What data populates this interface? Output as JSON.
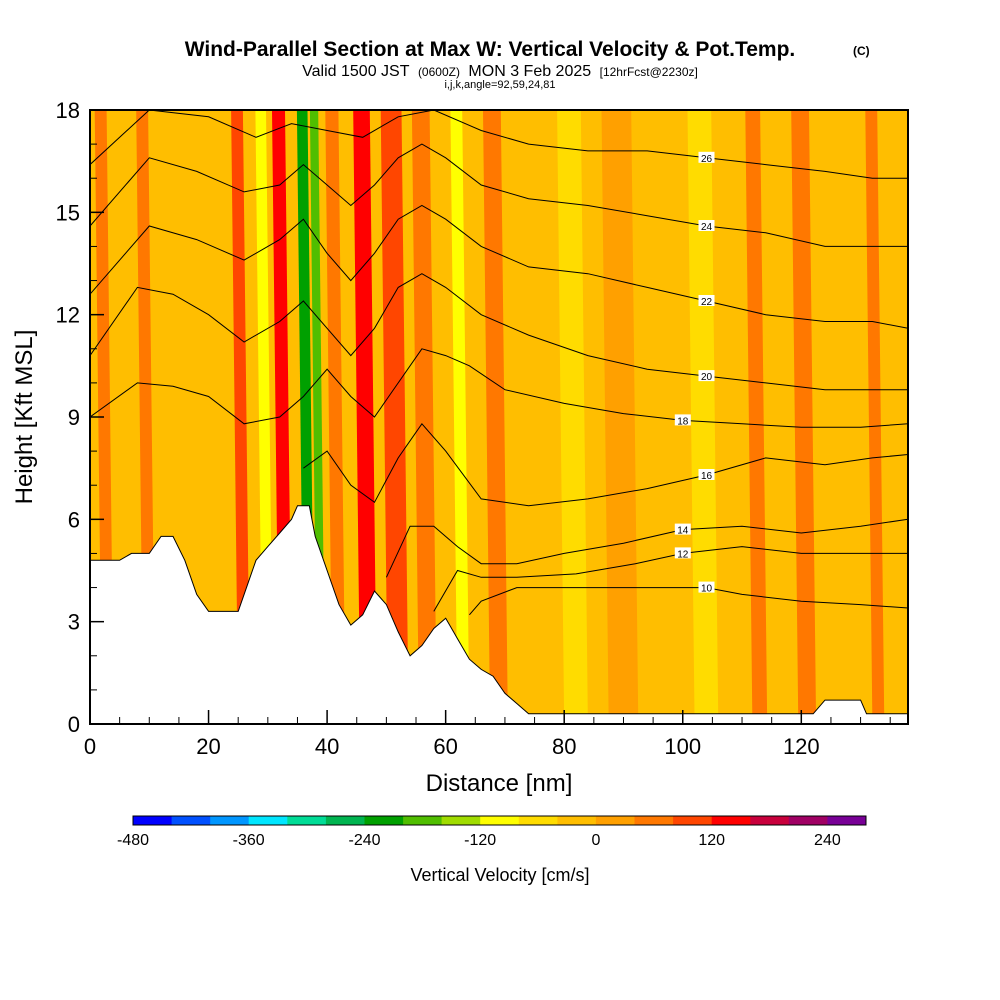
{
  "chart_data": {
    "type": "heatmap",
    "title": "Wind-Parallel Section at Max W: Vertical Velocity & Pot.Temp.",
    "title_mark": "(C)",
    "subtitle_main": "Valid 1500 JST",
    "subtitle_z": "(0600Z)",
    "subtitle_date": "MON 3 Feb 2025",
    "subtitle_fcst": "[12hrFcst@2230z]",
    "subtitle2": "i,j,k,angle=92,59,24,81",
    "xlabel": "Distance [nm]",
    "ylabel": "Height [Kft MSL]",
    "xlim": [
      0,
      138
    ],
    "ylim": [
      0,
      18
    ],
    "x_ticks": [
      0,
      20,
      40,
      60,
      80,
      100,
      120
    ],
    "y_ticks": [
      0,
      3,
      6,
      9,
      12,
      15,
      18
    ],
    "colorbar": {
      "label": "Vertical Velocity [cm/s]",
      "tick_values": [
        -480,
        -360,
        -240,
        -120,
        0,
        120,
        240
      ],
      "min": -480,
      "step": 40,
      "colors": [
        "#0000ff",
        "#0050ff",
        "#0096ff",
        "#00e6ff",
        "#00dc96",
        "#00b450",
        "#00a000",
        "#50be00",
        "#a0dc00",
        "#ffff00",
        "#ffdc00",
        "#ffbe00",
        "#ffa000",
        "#ff7800",
        "#ff4600",
        "#ff0000",
        "#c8003c",
        "#a00064",
        "#780096"
      ]
    },
    "background_color": "#ffbe00",
    "terrain": [
      [
        0,
        4.8
      ],
      [
        5,
        4.8
      ],
      [
        7,
        5.0
      ],
      [
        10,
        5.0
      ],
      [
        12,
        5.5
      ],
      [
        14,
        5.5
      ],
      [
        16,
        4.8
      ],
      [
        18,
        3.8
      ],
      [
        20,
        3.3
      ],
      [
        25,
        3.3
      ],
      [
        26,
        3.8
      ],
      [
        28,
        4.8
      ],
      [
        30,
        5.2
      ],
      [
        32,
        5.6
      ],
      [
        34,
        6.0
      ],
      [
        35,
        6.4
      ],
      [
        37,
        6.4
      ],
      [
        38,
        5.5
      ],
      [
        40,
        4.5
      ],
      [
        42,
        3.5
      ],
      [
        44,
        2.9
      ],
      [
        46,
        3.2
      ],
      [
        48,
        3.9
      ],
      [
        50,
        3.5
      ],
      [
        52,
        2.7
      ],
      [
        54,
        2.0
      ],
      [
        56,
        2.3
      ],
      [
        58,
        2.8
      ],
      [
        60,
        3.1
      ],
      [
        62,
        2.5
      ],
      [
        64,
        1.9
      ],
      [
        66,
        1.6
      ],
      [
        68,
        1.4
      ],
      [
        70,
        0.9
      ],
      [
        72,
        0.6
      ],
      [
        74,
        0.3
      ],
      [
        122,
        0.3
      ],
      [
        124,
        0.7
      ],
      [
        130,
        0.7
      ],
      [
        131,
        0.3
      ],
      [
        138,
        0.3
      ]
    ],
    "w_bands": [
      {
        "x": 3,
        "w": 2.0,
        "value": 60
      },
      {
        "x": 10,
        "w": 2.0,
        "value": 70
      },
      {
        "x": 19,
        "w": 2.5,
        "value": -30
      },
      {
        "x": 26,
        "w": 2.0,
        "value": 110
      },
      {
        "x": 30,
        "w": 1.8,
        "value": -100
      },
      {
        "x": 33,
        "w": 2.2,
        "value": 140
      },
      {
        "x": 37,
        "w": 1.8,
        "value": -230
      },
      {
        "x": 39,
        "w": 1.4,
        "value": -180
      },
      {
        "x": 42,
        "w": 2.2,
        "value": 40
      },
      {
        "x": 47,
        "w": 2.8,
        "value": 140
      },
      {
        "x": 52,
        "w": 3.5,
        "value": 90
      },
      {
        "x": 57,
        "w": 3.0,
        "value": 70
      },
      {
        "x": 63,
        "w": 2.0,
        "value": -100
      },
      {
        "x": 69,
        "w": 3.0,
        "value": 40
      },
      {
        "x": 82,
        "w": 4.0,
        "value": -60
      },
      {
        "x": 90,
        "w": 5.0,
        "value": 30
      },
      {
        "x": 104,
        "w": 4.0,
        "value": -50
      },
      {
        "x": 113,
        "w": 2.5,
        "value": 70
      },
      {
        "x": 121,
        "w": 3.0,
        "value": 40
      },
      {
        "x": 126,
        "w": 2.0,
        "value": -40
      },
      {
        "x": 133,
        "w": 2.0,
        "value": 50
      }
    ],
    "theta_contours": [
      {
        "level": 10,
        "label": "10",
        "points": [
          [
            64,
            3.2
          ],
          [
            66,
            3.6
          ],
          [
            72,
            4.0
          ],
          [
            80,
            4.0
          ],
          [
            92,
            4.0
          ],
          [
            104,
            4.0
          ],
          [
            110,
            3.8
          ],
          [
            120,
            3.6
          ],
          [
            130,
            3.5
          ],
          [
            138,
            3.4
          ]
        ]
      },
      {
        "level": 12,
        "label": "12",
        "points": [
          [
            58,
            3.3
          ],
          [
            62,
            4.5
          ],
          [
            66,
            4.3
          ],
          [
            72,
            4.3
          ],
          [
            82,
            4.4
          ],
          [
            92,
            4.7
          ],
          [
            100,
            5.0
          ],
          [
            110,
            5.2
          ],
          [
            120,
            5.0
          ],
          [
            130,
            5.0
          ],
          [
            138,
            5.0
          ]
        ]
      },
      {
        "level": 14,
        "label": "14",
        "points": [
          [
            50,
            4.3
          ],
          [
            54,
            5.8
          ],
          [
            58,
            5.8
          ],
          [
            62,
            5.2
          ],
          [
            66,
            4.7
          ],
          [
            72,
            4.7
          ],
          [
            80,
            5.0
          ],
          [
            90,
            5.3
          ],
          [
            100,
            5.7
          ],
          [
            110,
            5.8
          ],
          [
            120,
            5.6
          ],
          [
            130,
            5.8
          ],
          [
            138,
            6.0
          ]
        ]
      },
      {
        "level": 16,
        "label": "16",
        "points": [
          [
            36,
            7.5
          ],
          [
            40,
            8.0
          ],
          [
            44,
            7.0
          ],
          [
            48,
            6.5
          ],
          [
            52,
            7.8
          ],
          [
            56,
            8.8
          ],
          [
            60,
            8.0
          ],
          [
            66,
            6.6
          ],
          [
            74,
            6.4
          ],
          [
            84,
            6.6
          ],
          [
            94,
            6.9
          ],
          [
            104,
            7.3
          ],
          [
            114,
            7.8
          ],
          [
            124,
            7.6
          ],
          [
            132,
            7.8
          ],
          [
            138,
            7.9
          ]
        ]
      },
      {
        "level": 18,
        "label": "18",
        "points": [
          [
            0,
            9.0
          ],
          [
            8,
            10.0
          ],
          [
            14,
            9.9
          ],
          [
            20,
            9.6
          ],
          [
            26,
            8.8
          ],
          [
            32,
            9.0
          ],
          [
            36,
            9.6
          ],
          [
            40,
            10.4
          ],
          [
            44,
            9.6
          ],
          [
            48,
            9.0
          ],
          [
            52,
            10.0
          ],
          [
            56,
            11.0
          ],
          [
            60,
            10.8
          ],
          [
            64,
            10.5
          ],
          [
            70,
            9.8
          ],
          [
            80,
            9.4
          ],
          [
            90,
            9.1
          ],
          [
            100,
            8.9
          ],
          [
            110,
            8.8
          ],
          [
            120,
            8.7
          ],
          [
            130,
            8.7
          ],
          [
            138,
            8.8
          ]
        ]
      },
      {
        "level": 20,
        "label": "20",
        "points": [
          [
            0,
            10.8
          ],
          [
            8,
            12.8
          ],
          [
            14,
            12.6
          ],
          [
            20,
            12.0
          ],
          [
            26,
            11.2
          ],
          [
            32,
            11.8
          ],
          [
            36,
            12.4
          ],
          [
            40,
            11.6
          ],
          [
            44,
            10.8
          ],
          [
            48,
            11.6
          ],
          [
            52,
            12.8
          ],
          [
            56,
            13.2
          ],
          [
            60,
            12.8
          ],
          [
            66,
            12.0
          ],
          [
            74,
            11.4
          ],
          [
            84,
            10.8
          ],
          [
            94,
            10.4
          ],
          [
            104,
            10.2
          ],
          [
            114,
            10.0
          ],
          [
            124,
            9.8
          ],
          [
            132,
            9.8
          ],
          [
            138,
            9.8
          ]
        ]
      },
      {
        "level": 22,
        "label": "22",
        "points": [
          [
            0,
            12.6
          ],
          [
            10,
            14.6
          ],
          [
            18,
            14.2
          ],
          [
            26,
            13.6
          ],
          [
            32,
            14.2
          ],
          [
            36,
            14.8
          ],
          [
            40,
            13.8
          ],
          [
            44,
            13.0
          ],
          [
            48,
            13.8
          ],
          [
            52,
            14.8
          ],
          [
            56,
            15.2
          ],
          [
            60,
            14.8
          ],
          [
            66,
            14.0
          ],
          [
            74,
            13.4
          ],
          [
            84,
            13.2
          ],
          [
            94,
            12.8
          ],
          [
            104,
            12.4
          ],
          [
            114,
            12.0
          ],
          [
            124,
            11.8
          ],
          [
            132,
            11.8
          ],
          [
            138,
            11.6
          ]
        ]
      },
      {
        "level": 24,
        "label": "24",
        "points": [
          [
            0,
            14.6
          ],
          [
            10,
            16.6
          ],
          [
            18,
            16.2
          ],
          [
            26,
            15.6
          ],
          [
            32,
            15.8
          ],
          [
            36,
            16.4
          ],
          [
            40,
            15.8
          ],
          [
            44,
            15.2
          ],
          [
            48,
            15.8
          ],
          [
            52,
            16.6
          ],
          [
            56,
            17.0
          ],
          [
            60,
            16.6
          ],
          [
            66,
            15.8
          ],
          [
            74,
            15.4
          ],
          [
            84,
            15.2
          ],
          [
            94,
            14.9
          ],
          [
            104,
            14.6
          ],
          [
            114,
            14.4
          ],
          [
            124,
            14.0
          ],
          [
            132,
            14.0
          ],
          [
            138,
            14.0
          ]
        ]
      },
      {
        "level": 26,
        "label": "26",
        "points": [
          [
            0,
            16.4
          ],
          [
            10,
            18.0
          ],
          [
            20,
            17.8
          ],
          [
            28,
            17.2
          ],
          [
            34,
            17.6
          ],
          [
            40,
            17.4
          ],
          [
            46,
            17.2
          ],
          [
            52,
            17.8
          ],
          [
            58,
            18.0
          ],
          [
            66,
            17.4
          ],
          [
            74,
            17.0
          ],
          [
            84,
            16.8
          ],
          [
            94,
            16.8
          ],
          [
            104,
            16.6
          ],
          [
            114,
            16.4
          ],
          [
            124,
            16.2
          ],
          [
            132,
            16.0
          ],
          [
            138,
            16.0
          ]
        ]
      }
    ]
  }
}
